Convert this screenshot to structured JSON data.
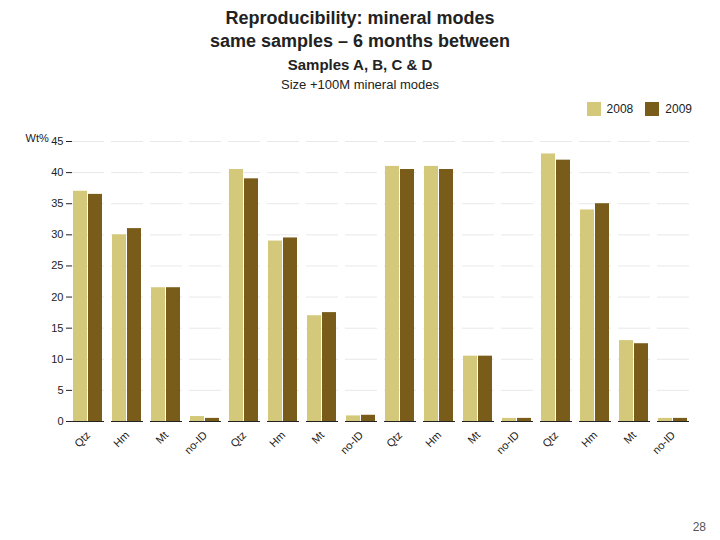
{
  "title": [
    "Reproducibility: mineral modes",
    "same samples – 6 months between"
  ],
  "subtitle": "Samples A, B, C & D",
  "annotations": [
    "28"
  ],
  "chart_data": {
    "type": "bar",
    "title": "Size +100M mineral modes",
    "ylabel": "Wt%",
    "categories": [
      "Qtz",
      "Hm",
      "Mt",
      "no-ID",
      "Qtz",
      "Hm",
      "Mt",
      "no-ID",
      "Qtz",
      "Hm",
      "Mt",
      "no-ID",
      "Qtz",
      "Hm",
      "Mt",
      "no-ID"
    ],
    "series": [
      {
        "name": "2008",
        "color": "#d4c97a",
        "values": [
          37,
          30,
          21.5,
          0.8,
          40.5,
          29,
          17,
          0.9,
          41,
          41,
          10.5,
          0.5,
          43,
          34,
          13,
          0.5
        ]
      },
      {
        "name": "2009",
        "color": "#7a5c1a",
        "values": [
          36.5,
          31,
          21.5,
          0.5,
          39,
          29.5,
          17.5,
          1.0,
          40.5,
          40.5,
          10.5,
          0.5,
          42,
          35,
          12.5,
          0.5
        ]
      }
    ],
    "ylim": [
      0,
      45
    ],
    "yticks": [
      0,
      5,
      10,
      15,
      20,
      25,
      30,
      35,
      40,
      45
    ],
    "grid": true,
    "legend": "upper right"
  }
}
